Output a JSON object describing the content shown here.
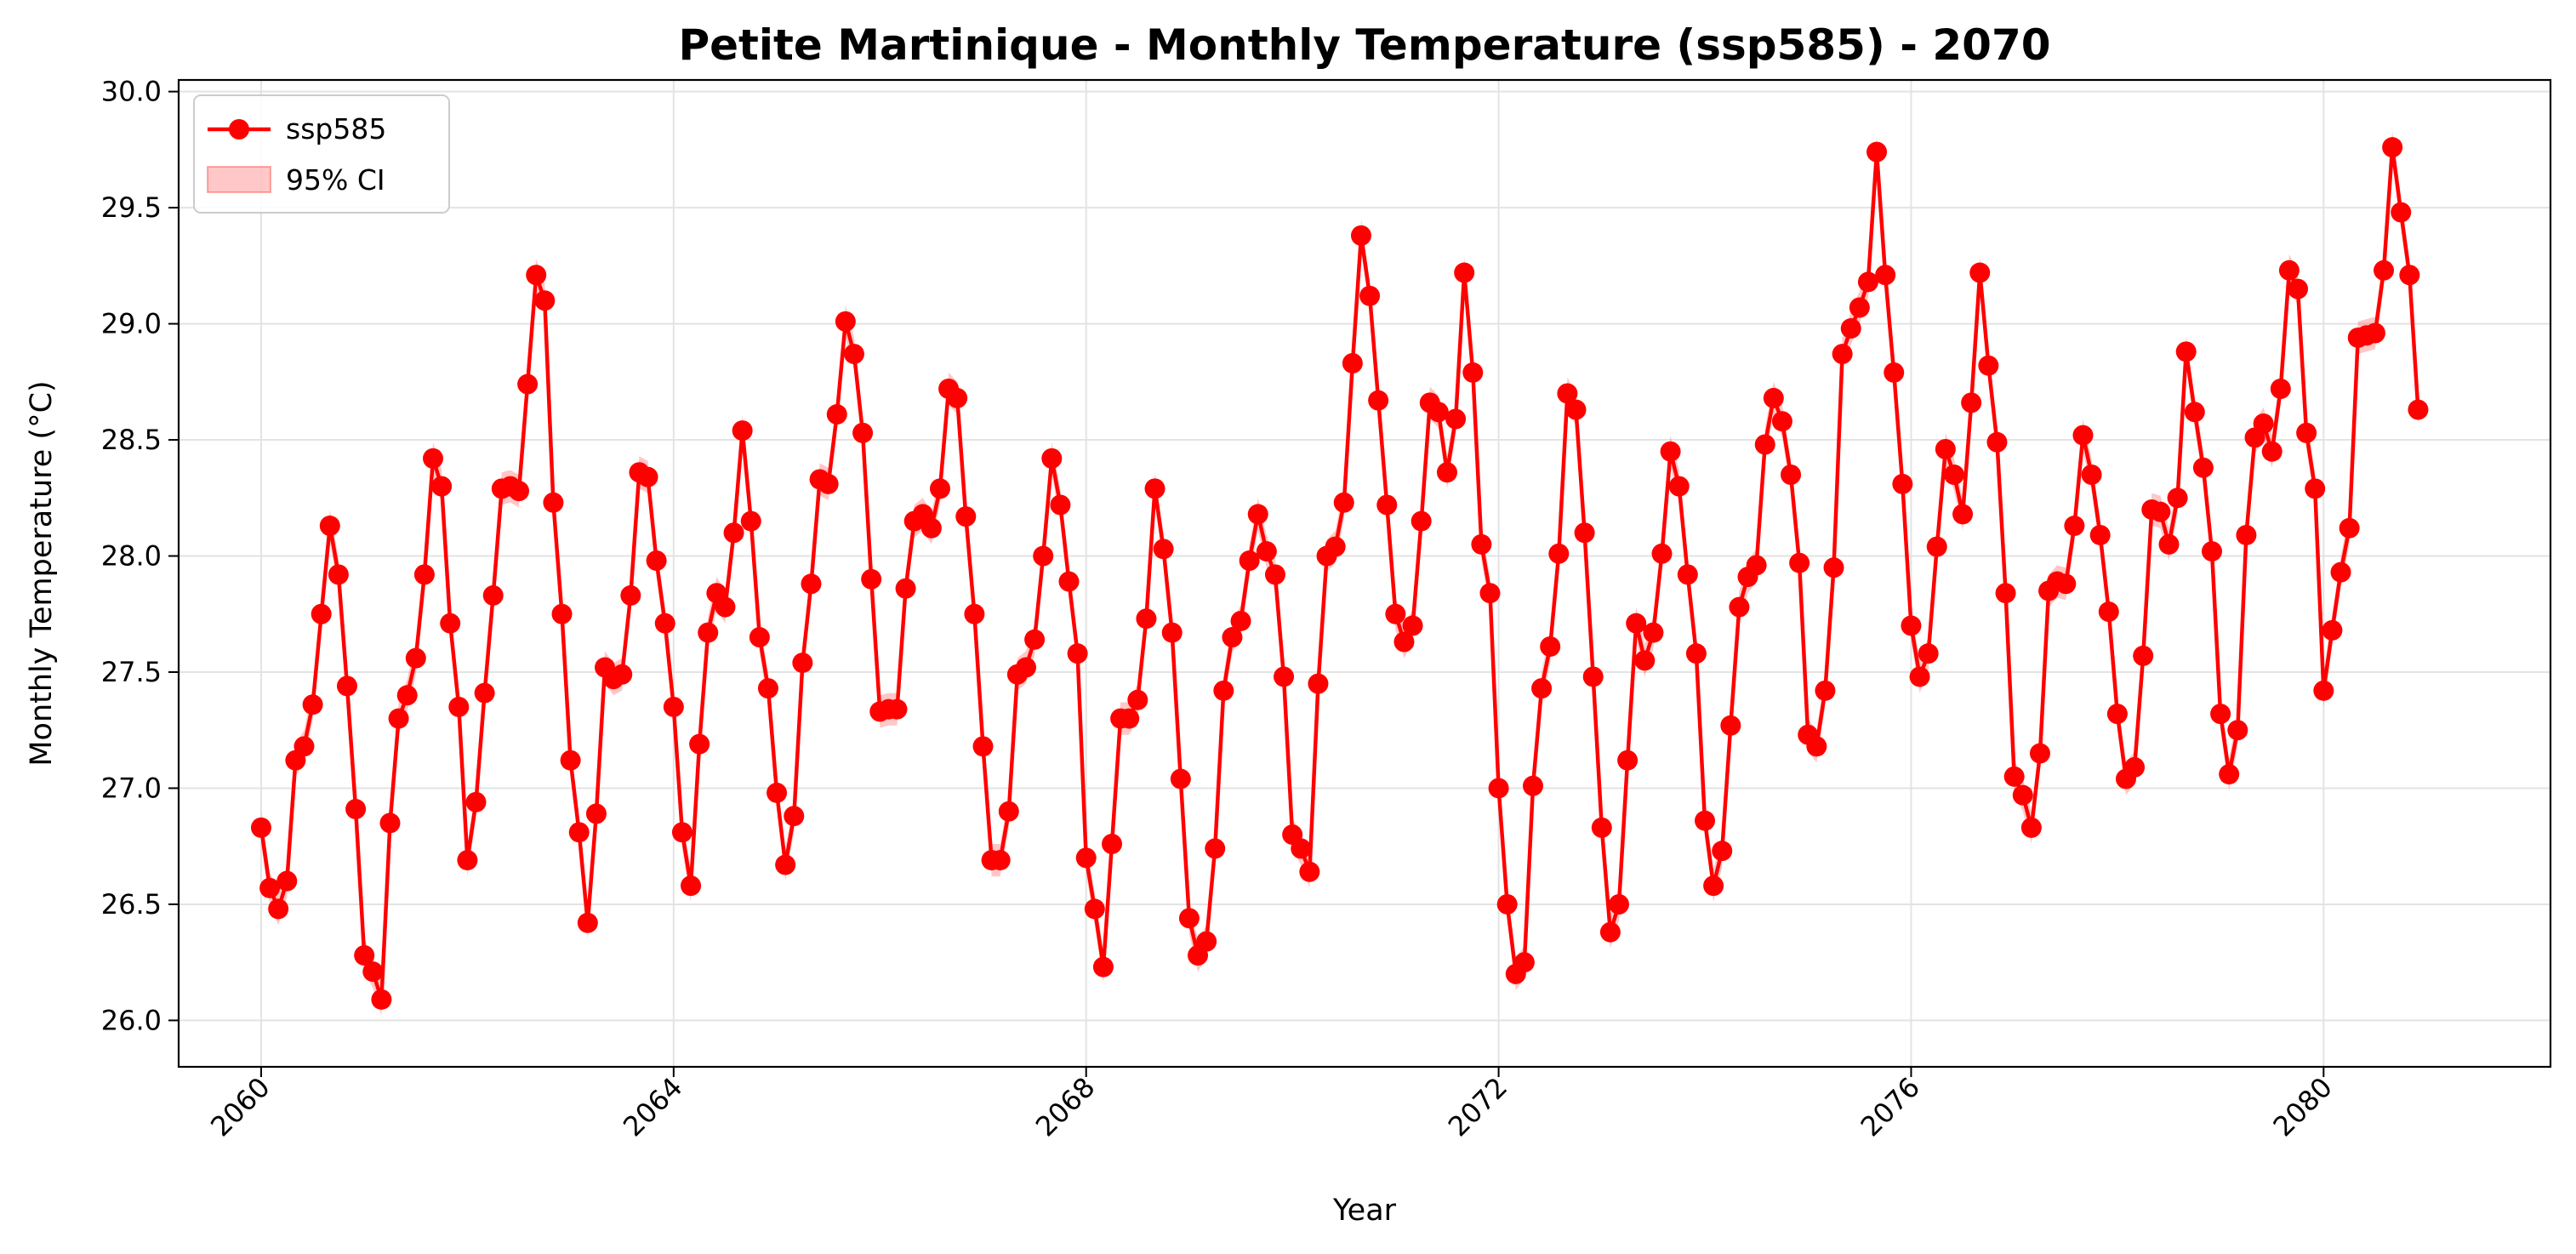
{
  "chart_data": {
    "type": "line",
    "title": "Petite Martinique - Monthly Temperature (ssp585) - 2070",
    "xlabel": "Year",
    "ylabel": "Monthly Temperature (°C)",
    "xlim": [
      2059.2,
      2082.2
    ],
    "ylim": [
      25.8,
      30.05
    ],
    "xticks": [
      2060,
      2064,
      2068,
      2072,
      2076,
      2080
    ],
    "yticks": [
      26.0,
      26.5,
      27.0,
      27.5,
      28.0,
      28.5,
      29.0,
      29.5,
      30.0
    ],
    "ytick_labels": [
      "26.0",
      "26.5",
      "27.0",
      "27.5",
      "28.0",
      "28.5",
      "29.0",
      "29.5",
      "30.0"
    ],
    "grid": true,
    "legend_position": "top-left",
    "x_start": 2060,
    "x_step": 0.0833333,
    "series": [
      {
        "name": "ssp585",
        "color": "#ff0000",
        "values": [
          26.83,
          26.57,
          26.48,
          26.6,
          27.12,
          27.18,
          27.36,
          27.75,
          28.13,
          27.92,
          27.44,
          26.91,
          26.28,
          26.21,
          26.09,
          26.85,
          27.3,
          27.4,
          27.56,
          27.92,
          28.42,
          28.3,
          27.71,
          27.35,
          26.69,
          26.94,
          27.41,
          27.83,
          28.29,
          28.3,
          28.28,
          28.74,
          29.21,
          29.1,
          28.23,
          27.75,
          27.12,
          26.81,
          26.42,
          26.89,
          27.52,
          27.47,
          27.49,
          27.83,
          28.36,
          28.34,
          27.98,
          27.71,
          27.35,
          26.81,
          26.58,
          27.19,
          27.67,
          27.84,
          27.78,
          28.1,
          28.54,
          28.15,
          27.65,
          27.43,
          26.98,
          26.67,
          26.88,
          27.54,
          27.88,
          28.33,
          28.31,
          28.61,
          29.01,
          28.87,
          28.53,
          27.9,
          27.33,
          27.34,
          27.34,
          27.86,
          28.15,
          28.18,
          28.12,
          28.29,
          28.72,
          28.68,
          28.17,
          27.75,
          27.18,
          26.69,
          26.69,
          26.9,
          27.49,
          27.52,
          27.64,
          28.0,
          28.42,
          28.22,
          27.89,
          27.58,
          26.7,
          26.48,
          26.23,
          26.76,
          27.3,
          27.3,
          27.38,
          27.73,
          28.29,
          28.03,
          27.67,
          27.04,
          26.44,
          26.28,
          26.34,
          26.74,
          27.42,
          27.65,
          27.72,
          27.98,
          28.18,
          28.02,
          27.92,
          27.48,
          26.8,
          26.74,
          26.64,
          27.45,
          28.0,
          28.04,
          28.23,
          28.83,
          29.38,
          29.12,
          28.67,
          28.22,
          27.75,
          27.63,
          27.7,
          28.15,
          28.66,
          28.62,
          28.36,
          28.59,
          29.22,
          28.79,
          28.05,
          27.84,
          27.0,
          26.5,
          26.2,
          26.25,
          27.01,
          27.43,
          27.61,
          28.01,
          28.7,
          28.63,
          28.1,
          27.48,
          26.83,
          26.38,
          26.5,
          27.12,
          27.71,
          27.55,
          27.67,
          28.01,
          28.45,
          28.3,
          27.92,
          27.58,
          26.86,
          26.58,
          26.73,
          27.27,
          27.78,
          27.91,
          27.96,
          28.48,
          28.68,
          28.58,
          28.35,
          27.97,
          27.23,
          27.18,
          27.42,
          27.95,
          28.87,
          28.98,
          29.07,
          29.18,
          29.74,
          29.21,
          28.79,
          28.31,
          27.7,
          27.48,
          27.58,
          28.04,
          28.46,
          28.35,
          28.18,
          28.66,
          29.22,
          28.82,
          28.49,
          27.84,
          27.05,
          26.97,
          26.83,
          27.15,
          27.85,
          27.89,
          27.88,
          28.13,
          28.52,
          28.35,
          28.09,
          27.76,
          27.32,
          27.04,
          27.09,
          27.57,
          28.2,
          28.19,
          28.05,
          28.25,
          28.88,
          28.62,
          28.38,
          28.02,
          27.32,
          27.06,
          27.25,
          28.09,
          28.51,
          28.57,
          28.45,
          28.72,
          29.23,
          29.15,
          28.53,
          28.29,
          27.42,
          27.68,
          27.93,
          28.12,
          28.94,
          28.95,
          28.96,
          29.23,
          29.76,
          29.48,
          29.21,
          28.63
        ]
      }
    ],
    "ci_band": {
      "name": "95% CI",
      "color": "#ff0000",
      "half_width": 0.07
    }
  }
}
